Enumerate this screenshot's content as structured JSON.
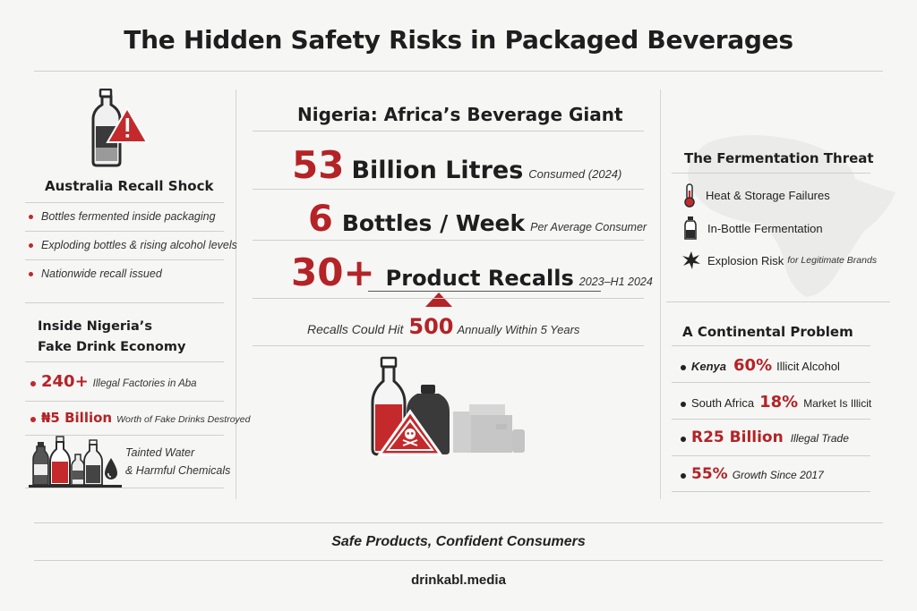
{
  "title": "The Hidden Safety Risks in Packaged Beverages",
  "colors": {
    "accent": "#c0282a",
    "dark": "#1e1e1e",
    "gray": "#bdbdbd"
  },
  "left": {
    "australia": {
      "heading": "Australia Recall Shock",
      "icon": "bottle-warning-icon",
      "bullets": [
        "Bottles fermented inside packaging",
        "Exploding bottles & rising alcohol levels",
        "Nationwide recall issued"
      ]
    },
    "nigeria_fake": {
      "heading_line1": "Inside Nigeria’s",
      "heading_line2": "Fake Drink Economy",
      "stat1_value": "240+",
      "stat1_text": "Illegal Factories in Aba",
      "stat2_value": "₦5 Billion",
      "stat2_text": "Worth of Fake Drinks Destroyed",
      "tainted_line1": "Tainted Water",
      "tainted_line2": "& Harmful Chemicals",
      "icon": "bottles-contamination-icon"
    }
  },
  "center": {
    "heading": "Nigeria: Africa’s Beverage Giant",
    "stats": [
      {
        "value": "53",
        "label": "Billion Litres",
        "note": "Consumed (2024)"
      },
      {
        "value": "6",
        "label": "Bottles / Week",
        "note": "Per Average Consumer"
      },
      {
        "value": "30+",
        "label": "Product Recalls",
        "note": "2023–H1 2024"
      }
    ],
    "projection_pre": "Recalls Could Hit",
    "projection_value": "500",
    "projection_post": "Annually Within 5 Years",
    "icon": "hazard-bottles-icon"
  },
  "right": {
    "fermentation": {
      "heading": "The Fermentation Threat",
      "items": [
        {
          "icon": "thermometer-icon",
          "text": "Heat & Storage Failures",
          "note": ""
        },
        {
          "icon": "bottle-icon",
          "text": "In-Bottle Fermentation",
          "note": ""
        },
        {
          "icon": "explosion-icon",
          "text": "Explosion Risk",
          "note": "for Legitimate Brands"
        }
      ]
    },
    "continental": {
      "heading": "A Continental Problem",
      "rows": [
        {
          "pre": "Kenya",
          "value": "60%",
          "post": "Illicit Alcohol"
        },
        {
          "pre": "South Africa",
          "value": "18%",
          "post": "Market Is Illicit"
        },
        {
          "pre": "",
          "value": "R25 Billion",
          "post": "Illegal Trade"
        },
        {
          "pre": "",
          "value": "55%",
          "post": "Growth Since 2017"
        }
      ]
    }
  },
  "footer": {
    "tagline": "Safe Products, Confident Consumers",
    "site": "drinkabl.media"
  }
}
